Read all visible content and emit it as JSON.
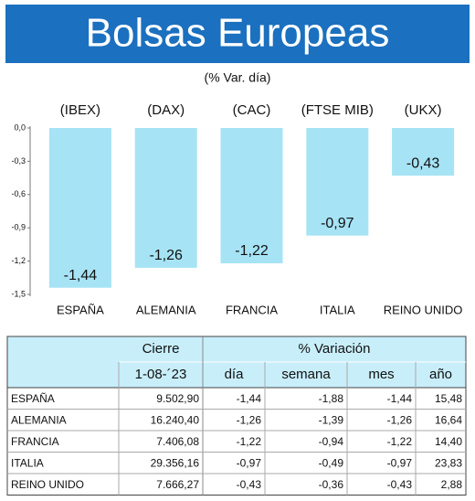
{
  "chart_data": {
    "type": "bar",
    "title": "Bolsas Europeas",
    "subtitle": "(% Var. día)",
    "categories": [
      "ESPAÑA",
      "ALEMANIA",
      "FRANCIA",
      "ITALIA",
      "REINO UNIDO"
    ],
    "indices": [
      "(IBEX)",
      "(DAX)",
      "(CAC)",
      "(FTSE MIB)",
      "(UKX)"
    ],
    "values": [
      -1.44,
      -1.26,
      -1.22,
      -0.97,
      -0.43
    ],
    "value_labels": [
      "-1,44",
      "-1,26",
      "-1,22",
      "-0,97",
      "-0,43"
    ],
    "color": "#a6e3f5",
    "ylim": [
      -1.5,
      0
    ],
    "yticks": [
      {
        "value": 0,
        "label": "0,0"
      },
      {
        "value": -0.3,
        "label": "-0,3"
      },
      {
        "value": -0.6,
        "label": "-0,6"
      },
      {
        "value": -0.9,
        "label": "-0,9"
      },
      {
        "value": -1.2,
        "label": "-1,2"
      },
      {
        "value": -1.5,
        "label": "-1,5"
      }
    ]
  },
  "table": {
    "header": [
      [
        "Cierre",
        "% Variación"
      ],
      [
        "1-08-´23",
        "día",
        "semana",
        "mes",
        "año"
      ]
    ],
    "rows": [
      [
        "ESPAÑA",
        "9.502,90",
        "-1,44",
        "-1,88",
        "-1,44",
        "15,48"
      ],
      [
        "ALEMANIA",
        "16.240,40",
        "-1,26",
        "-1,39",
        "-1,26",
        "16,64"
      ],
      [
        "FRANCIA",
        "7.406,08",
        "-1,22",
        "-0,94",
        "-1,22",
        "14,40"
      ],
      [
        "ITALIA",
        "29.356,16",
        "-0,97",
        "-0,49",
        "-0,97",
        "23,83"
      ],
      [
        "REINO UNIDO",
        "7.666,27",
        "-0,43",
        "-0,36",
        "-0,43",
        "2,88"
      ]
    ]
  }
}
